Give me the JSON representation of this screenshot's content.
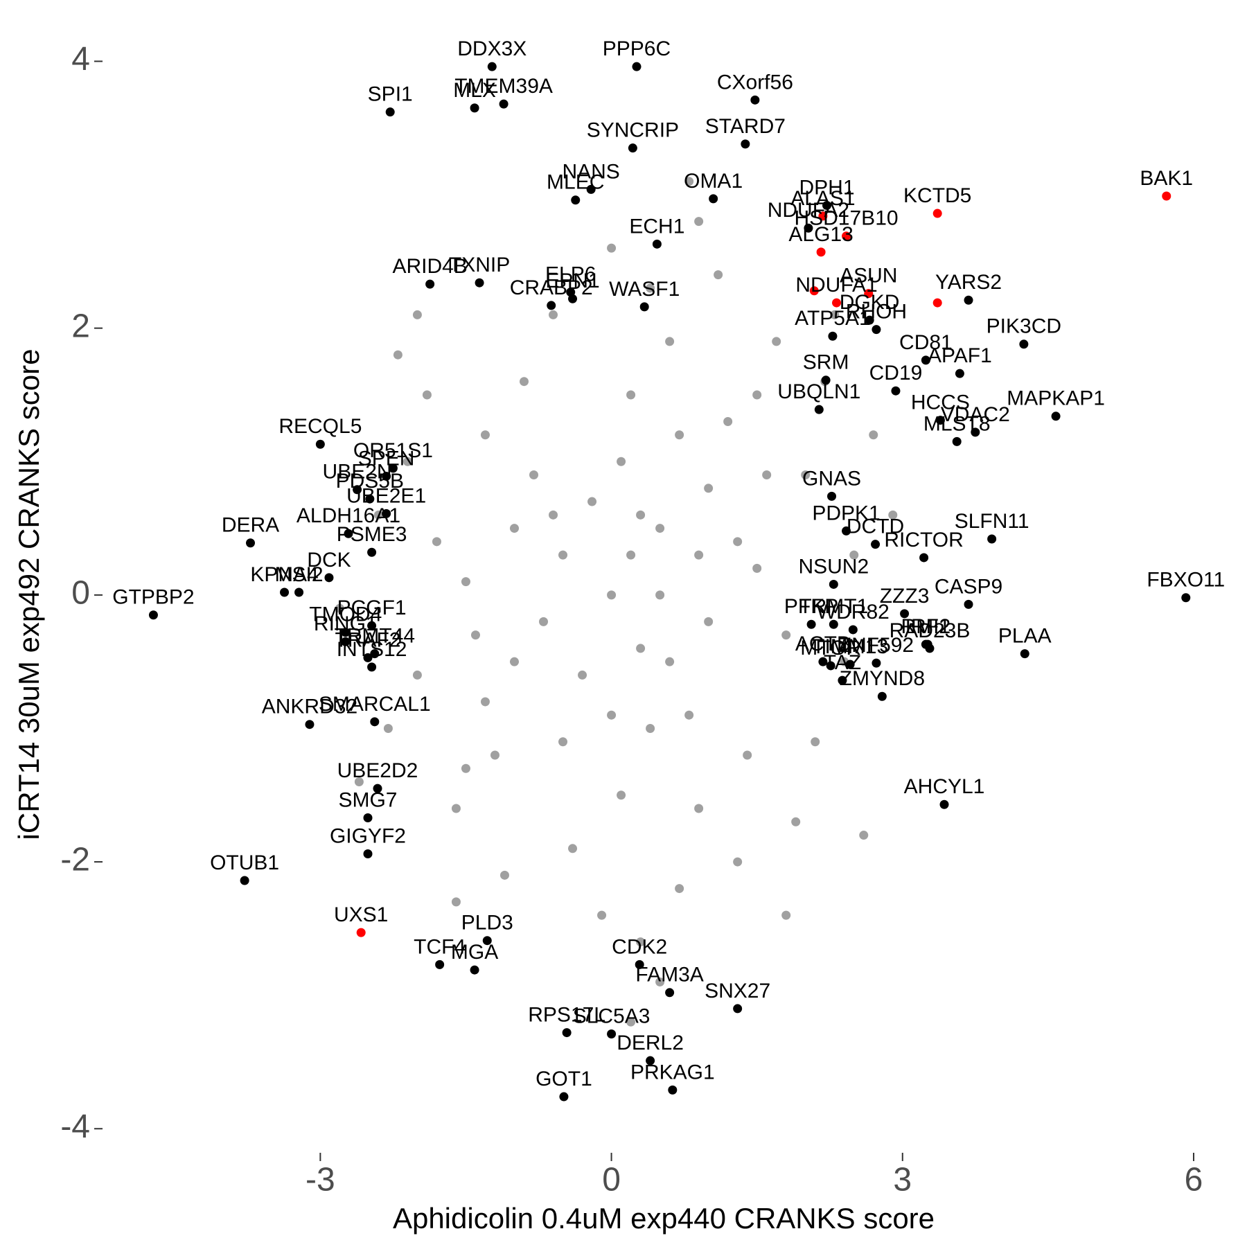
{
  "chart_data": {
    "type": "scatter",
    "xlabel": "Aphidicolin 0.4uM exp440 CRANKS score",
    "ylabel": "iCRT14 30uM exp492 CRANKS score",
    "xlim": [
      -5.23,
      6.3
    ],
    "xticks": [
      -3,
      0,
      3,
      6
    ],
    "ylim": [
      -4.17,
      4.34
    ],
    "yticks": [
      -4,
      -2,
      0,
      2,
      4
    ],
    "series": [
      {
        "color": "#a0a0a0",
        "x": [
          0,
          0.5,
          -0.5,
          0.3,
          1,
          -1,
          0.8,
          -0.8,
          1.5,
          -1.5,
          0.2,
          0.1,
          1.2,
          -1.2,
          1.8,
          -1.8,
          0.6,
          -0.4,
          2.0,
          -2.0,
          0.9,
          -0.9,
          1.4,
          -1.3,
          0.4,
          0.7,
          2.2,
          -2.1,
          1.7,
          -1.6,
          0.0,
          0.3,
          2.4,
          -2.3,
          1.1,
          -0.6,
          1.3,
          -1.1,
          2.5,
          -2.4,
          0.5,
          -0.2,
          0.9,
          -0.7,
          0.1,
          0.4,
          1.6,
          -1.4,
          0.7,
          -0.5,
          2.1,
          -1.9,
          1.9,
          -0.1,
          0.9,
          0.5,
          2.7,
          -2.6,
          1.0,
          -1.0,
          0.3,
          -0.3,
          1.3,
          -1.3,
          0.6,
          -0.6,
          1.5,
          -1.5,
          2.3,
          -2.0,
          0.8,
          0.2,
          2.9,
          -2.8,
          1.8,
          -1.6,
          2.6,
          -2.2,
          0.0,
          0.2
        ],
        "y": [
          0,
          0.5,
          0.3,
          -0.4,
          0.8,
          -0.5,
          -0.9,
          0.9,
          0.2,
          0.1,
          1.5,
          -1.5,
          1.3,
          -1.2,
          -0.3,
          0.4,
          1.9,
          -1.9,
          0.9,
          -0.6,
          -1.6,
          1.6,
          -1.2,
          1.2,
          2.3,
          -2.2,
          1.6,
          1.0,
          1.9,
          -1.6,
          2.6,
          -2.6,
          -0.5,
          -1.0,
          2.4,
          2.1,
          -2.0,
          -2.1,
          0.3,
          0.6,
          0.0,
          0.7,
          0.3,
          -0.2,
          1.0,
          -1.0,
          0.9,
          -0.3,
          1.2,
          -1.1,
          -1.1,
          1.5,
          -1.7,
          -2.4,
          2.8,
          -2.9,
          1.2,
          -1.4,
          -0.2,
          0.5,
          0.6,
          -0.6,
          0.4,
          -0.8,
          -0.5,
          0.6,
          1.5,
          -1.3,
          2.1,
          2.1,
          3.1,
          -3.2,
          0.6,
          -0.1,
          -2.4,
          -2.3,
          -1.8,
          1.8,
          -0.9,
          0.3
        ]
      },
      {
        "color": "#000000",
        "labels": [
          "DDX3X",
          "PPP6C",
          "SPI1",
          "MLX",
          "TMEM39A",
          "CXorf56",
          "SYNCRIP",
          "STARD7",
          "NANS",
          "MLEC",
          "OMA1",
          "NDUFA2",
          "DPH1",
          "ARID4B",
          "TXNIP",
          "ECH1",
          "ELP6",
          "YARS2",
          "CRABP2",
          "EPN1",
          "ATP5A1",
          "WASF1",
          "CD81",
          "PIK3CD",
          "APAF1",
          "RHOH",
          "DGKD",
          "SRM",
          "UBQLN1",
          "CD19",
          "HCCS",
          "MAPKAP1",
          "VDAC2",
          "MLST8",
          "SLFN11",
          "GNAS",
          "PDPK1",
          "DCTD",
          "RICTOR",
          "FBXO11",
          "NSUN2",
          "CASP9",
          "ZZZ3",
          "IRF1",
          "PLAA",
          "PFKP",
          "TRMT1",
          "WDR82",
          "RMI2",
          "RAD23B",
          "ACTB",
          "ZNF592",
          "TIMM13",
          "MTOR",
          "TAZ",
          "ZMYND8",
          "AHCYL1",
          "RECQL5",
          "SPEN",
          "OR51S1",
          "UBE2N",
          "PDS5B",
          "ALDH16A1",
          "UBE2E1",
          "DERA",
          "DCK",
          "PSME3",
          "KPNA4",
          "MSI2",
          "GTPBP2",
          "TMOD4",
          "PCGF1",
          "RING1",
          "TRMT44",
          "INTS12",
          "TRAF2",
          "ANKRD32",
          "SMARCAL1",
          "UBE2D2",
          "SMG7",
          "GIGYF2",
          "OTUB1",
          "PLD3",
          "TCF4",
          "MGA",
          "CDK2",
          "FAM3A",
          "SNX27",
          "SLC5A3",
          "RPS17L",
          "DERL2",
          "GOT1",
          "PRKAG1"
        ],
        "x": [
          -1.23,
          0.26,
          -2.28,
          -1.41,
          -1.11,
          1.48,
          0.22,
          1.38,
          -0.21,
          -0.37,
          1.05,
          2.03,
          2.22,
          -1.87,
          -1.36,
          0.47,
          -0.42,
          3.68,
          -0.62,
          -0.4,
          2.28,
          0.34,
          3.24,
          4.25,
          3.59,
          2.73,
          2.66,
          2.21,
          2.14,
          2.93,
          3.39,
          4.58,
          3.75,
          3.56,
          3.92,
          2.27,
          2.42,
          2.72,
          3.22,
          5.92,
          2.29,
          3.68,
          3.02,
          3.26,
          4.26,
          2.06,
          2.29,
          2.49,
          3.24,
          3.28,
          2.18,
          2.73,
          2.46,
          2.26,
          2.38,
          2.79,
          3.43,
          -3.0,
          -2.32,
          -2.25,
          -2.62,
          -2.49,
          -2.71,
          -2.32,
          -3.72,
          -2.91,
          -2.47,
          -3.37,
          -3.22,
          -4.72,
          -2.74,
          -2.47,
          -2.74,
          -2.44,
          -2.47,
          -2.51,
          -3.11,
          -2.44,
          -2.41,
          -2.51,
          -2.51,
          -3.78,
          -1.28,
          -1.77,
          -1.41,
          0.29,
          0.6,
          1.3,
          0,
          -0.46,
          0.4,
          -0.49,
          0.63
        ],
        "y": [
          3.96,
          3.96,
          3.62,
          3.65,
          3.68,
          3.71,
          3.35,
          3.38,
          3.04,
          2.96,
          2.97,
          2.75,
          2.92,
          2.33,
          2.34,
          2.63,
          2.27,
          2.21,
          2.17,
          2.22,
          1.94,
          2.16,
          1.76,
          1.88,
          1.66,
          1.99,
          2.06,
          1.61,
          1.39,
          1.53,
          1.31,
          1.34,
          1.22,
          1.15,
          0.42,
          0.74,
          0.48,
          0.38,
          0.28,
          -0.02,
          0.08,
          -0.07,
          -0.14,
          -0.37,
          -0.44,
          -0.22,
          -0.22,
          -0.26,
          -0.37,
          -0.4,
          -0.5,
          -0.51,
          -0.52,
          -0.53,
          -0.64,
          -0.76,
          -1.57,
          1.13,
          0.89,
          0.95,
          0.79,
          0.72,
          0.46,
          0.61,
          0.39,
          0.13,
          0.32,
          0.02,
          0.02,
          -0.15,
          -0.28,
          -0.23,
          -0.35,
          -0.44,
          -0.54,
          -0.47,
          -0.97,
          -0.95,
          -1.45,
          -1.67,
          -1.94,
          -2.14,
          -2.59,
          -2.77,
          -2.81,
          -2.77,
          -2.98,
          -3.1,
          -3.29,
          -3.28,
          -3.49,
          -3.76,
          -3.71
        ]
      },
      {
        "color": "#ff0000",
        "labels": [
          "ALAS1",
          "HSD17B10",
          "KCTD5",
          "BAK1",
          "ALG13",
          "ASUN",
          "NDUFA1",
          null,
          null,
          "UXS1"
        ],
        "x": [
          2.18,
          2.42,
          3.36,
          5.72,
          2.16,
          2.65,
          2.32,
          2.09,
          3.36,
          -2.58
        ],
        "y": [
          2.84,
          2.69,
          2.86,
          2.99,
          2.57,
          2.26,
          2.19,
          2.28,
          2.19,
          -2.53
        ]
      }
    ]
  }
}
